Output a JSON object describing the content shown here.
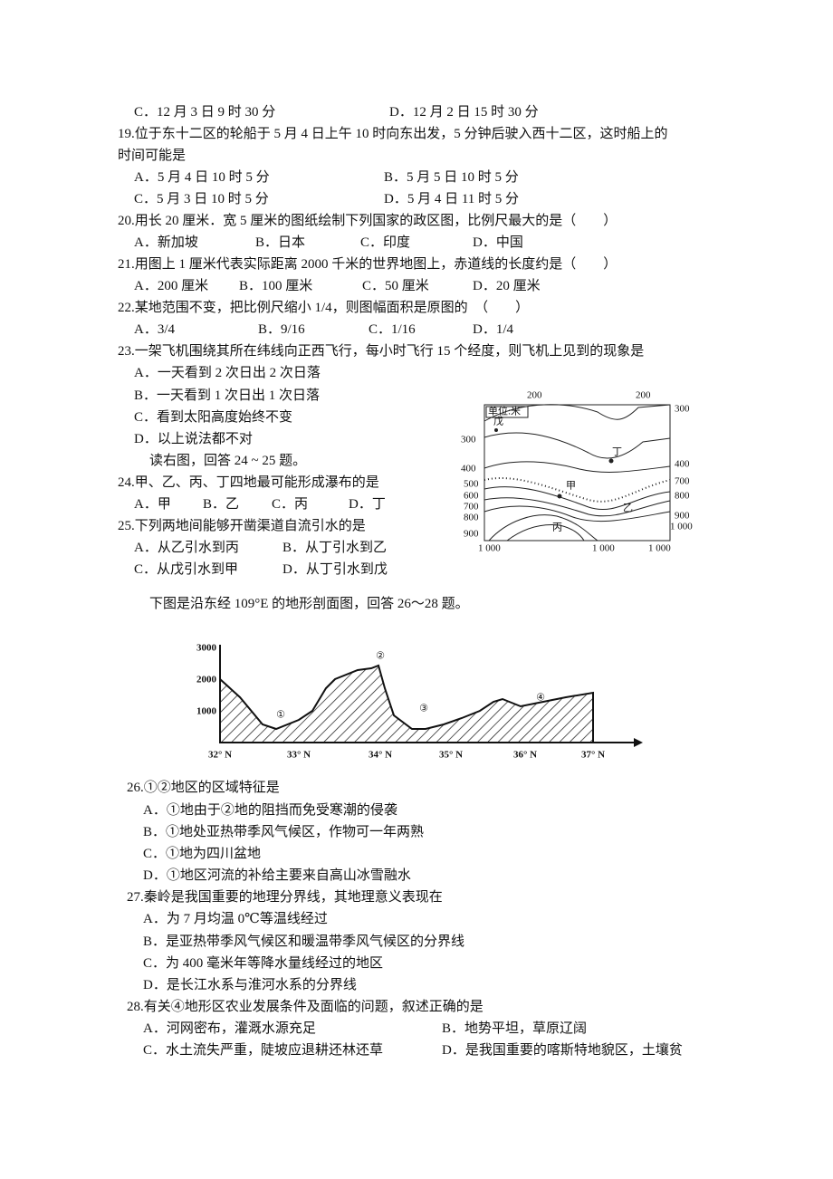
{
  "q18": {
    "options": [
      "C．12 月 3 日 9 时 30 分",
      "D．12 月 2 日 15 时 30 分"
    ]
  },
  "q19": {
    "stem": [
      "19.位于东十二区的轮船于 5 月 4 日上午 10 时向东出发，5 分钟后驶入西十二区，这时船上的",
      "时间可能是"
    ],
    "options": [
      "A．5 月 4 日 10 时 5 分",
      "B．5 月 5 日 10 时 5 分",
      "C．5 月 3 日 10 时 5 分",
      "D．5 月 4 日 11 时 5 分"
    ]
  },
  "q20": {
    "stem": [
      "20.用长 20 厘米．宽 5 厘米的图纸绘制下列国家的政区图，比例尺最大的是（　　）"
    ],
    "options": [
      "A．新加坡",
      "B．日本",
      "C．印度",
      "D．中国"
    ]
  },
  "q21": {
    "stem": [
      "21.用图上 1 厘米代表实际距离 2000 千米的世界地图上，赤道线的长度约是（　　）"
    ],
    "options": [
      "A．200 厘米",
      "B．100 厘米",
      "C．50 厘米",
      "D．20 厘米"
    ]
  },
  "q22": {
    "stem": [
      "22.某地范围不变，把比例尺缩小 1/4，则图幅面积是原图的　（　　）"
    ],
    "options": [
      "A．3/4",
      "B．9/16",
      "C．1/16",
      "D．1/4"
    ]
  },
  "q23": {
    "stem": [
      "23.一架飞机围绕其所在纬线向正西飞行，每小时飞行 15 个经度，则飞机上见到的现象是"
    ],
    "options": [
      "A．一天看到 2 次日出 2 次日落",
      "B．一天看到 1 次日出 1 次日落",
      "C．看到太阳高度始终不变",
      "D．以上说法都不对"
    ]
  },
  "intro1": "读右图，回答 24 ~ 25 题。",
  "q24": {
    "stem": [
      "24.甲、乙、丙、丁四地最可能形成瀑布的是"
    ],
    "options": [
      "A．甲",
      "B．乙",
      "C．丙",
      "D．丁"
    ]
  },
  "q25": {
    "stem": [
      "25.下列两地间能够开凿渠道自流引水的是"
    ],
    "options": [
      "A．从乙引水到丙",
      "B．从丁引水到乙",
      "C．从戊引水到甲",
      "D．从丁引水到戊"
    ]
  },
  "map": {
    "unit": "单位:米",
    "labels": [
      "200",
      "200",
      "戊",
      "300",
      "400",
      "500",
      "600",
      "700",
      "800",
      "900",
      "300",
      "400",
      "700",
      "800",
      "900",
      "1 000",
      "1 000",
      "1 000",
      "1 000",
      "丁",
      "甲",
      "乙",
      "丙"
    ]
  },
  "intro2": "下图是沿东经 109°E 的地形剖面图，回答 26～28 题。",
  "profile": {
    "yticks": [
      "3000",
      "2000",
      "1000"
    ],
    "xticks": [
      "32° N",
      "33° N",
      "34° N",
      "35° N",
      "36° N",
      "37° N"
    ],
    "markers": [
      "①",
      "②",
      "③",
      "④"
    ]
  },
  "q26": {
    "stem": [
      "26.①②地区的区域特征是"
    ],
    "options": [
      "A．①地由于②地的阻挡而免受寒潮的侵袭",
      "B．①地处亚热带季风气候区，作物可一年两熟",
      "C．①地为四川盆地",
      "D．①地区河流的补给主要来自高山冰雪融水"
    ]
  },
  "q27": {
    "stem": [
      "27.秦岭是我国重要的地理分界线，其地理意义表现在"
    ],
    "options": [
      "A．为 7 月均温 0℃等温线经过",
      "B．是亚热带季风气候区和暖温带季风气候区的分界线",
      "C．为 400 毫米年等降水量线经过的地区",
      "D．是长江水系与淮河水系的分界线"
    ]
  },
  "q28": {
    "stem": [
      "28.有关④地形区农业发展条件及面临的问题，叙述正确的是"
    ],
    "options": [
      "A．河网密布，灌溉水源充足",
      "B．地势平坦，草原辽阔",
      "C．水土流失严重，陡坡应退耕还林还草",
      "D．是我国重要的喀斯特地貌区，土壤贫"
    ]
  }
}
